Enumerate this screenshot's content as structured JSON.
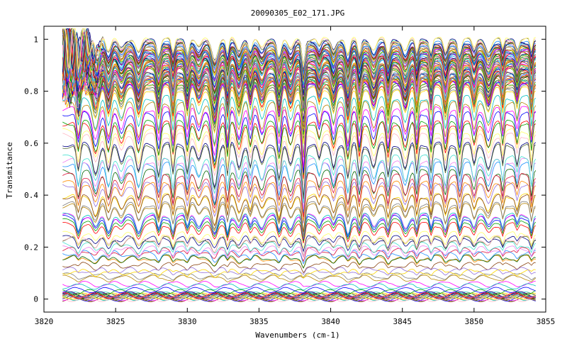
{
  "chart_data": {
    "type": "line",
    "title": "20090305_E02_171.JPG",
    "xlabel": "Wavenumbers (cm-1)",
    "ylabel": "Transmitance",
    "xlim": [
      3820,
      3855
    ],
    "ylim": [
      -0.05,
      1.05
    ],
    "x_ticks": [
      3820,
      3825,
      3830,
      3835,
      3840,
      3845,
      3850,
      3855
    ],
    "x_tick_labels": [
      "3820",
      "3825",
      "3830",
      "3835",
      "3840",
      "3845",
      "3850",
      "3855"
    ],
    "y_ticks": [
      0,
      0.2,
      0.4,
      0.6,
      0.8,
      1
    ],
    "y_tick_labels": [
      "0",
      "0.2",
      "0.4",
      "0.6",
      "0.8",
      "1"
    ],
    "x_range_data": [
      3821.3,
      3854.3
    ],
    "grid": false,
    "legend": "none",
    "series_count": 140,
    "series_levels_approx": [
      0.0,
      0.01,
      0.03,
      0.05,
      0.08,
      0.1,
      0.12,
      0.15,
      0.18,
      0.2,
      0.22,
      0.25,
      0.28,
      0.3,
      0.33,
      0.36,
      0.4,
      0.44,
      0.48,
      0.52,
      0.56,
      0.6,
      0.64,
      0.68,
      0.72,
      0.76,
      0.8,
      0.84,
      0.88,
      0.92,
      0.95,
      0.98,
      1.0
    ],
    "absorption_lines_approx": [
      3822.4,
      3823.6,
      3824.5,
      3825.4,
      3826.6,
      3828.0,
      3829.0,
      3830.0,
      3830.8,
      3831.9,
      3832.8,
      3833.6,
      3834.4,
      3835.2,
      3836.4,
      3837.2,
      3838.1,
      3839.2,
      3840.2,
      3841.2,
      3842.0,
      3843.0,
      3844.0,
      3845.2,
      3846.0,
      3847.0,
      3848.0,
      3849.0,
      3850.0,
      3851.0,
      3852.0,
      3853.0,
      3854.0
    ],
    "colors": [
      "#ff0000",
      "#00a000",
      "#0000ff",
      "#ff00ff",
      "#00c0c0",
      "#b8860b",
      "#808080",
      "#ffd700",
      "#8b4513",
      "#9370db",
      "#ff8c00",
      "#006400",
      "#dc143c",
      "#1e90ff",
      "#ee82ee",
      "#40e0d0",
      "#000080",
      "#556b2f",
      "#ffb6c1",
      "#ffff66"
    ]
  }
}
